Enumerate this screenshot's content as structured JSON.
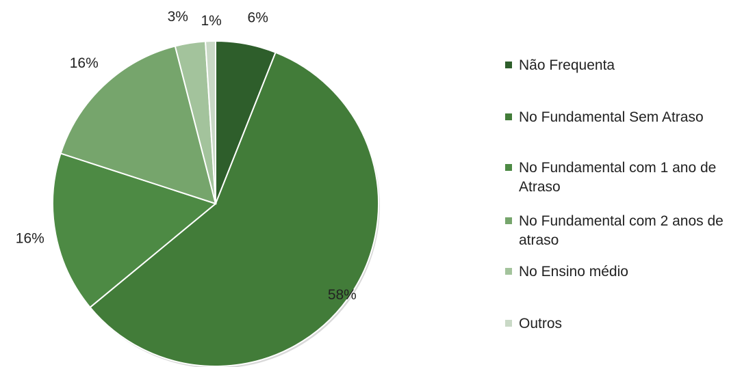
{
  "chart_data": {
    "type": "pie",
    "title": "",
    "slices": [
      {
        "label": "Não Frequenta",
        "value": 6,
        "display": "6%",
        "color": "#2e5e2b"
      },
      {
        "label": "No Fundamental Sem Atraso",
        "value": 58,
        "display": "58%",
        "color": "#427c39"
      },
      {
        "label": "No Fundamental com 1 ano de Atraso",
        "value": 16,
        "display": "16%",
        "color": "#4d8a44"
      },
      {
        "label": "No Fundamental com 2 anos de atraso",
        "value": 16,
        "display": "16%",
        "color": "#76a56c"
      },
      {
        "label": "No Ensino médio",
        "value": 3,
        "display": "3%",
        "color": "#a3c39c"
      },
      {
        "label": "Outros",
        "value": 1,
        "display": "1%",
        "color": "#c9d9c6"
      }
    ],
    "start_angle": "12 o'clock",
    "direction": "clockwise",
    "legend_position": "right"
  }
}
